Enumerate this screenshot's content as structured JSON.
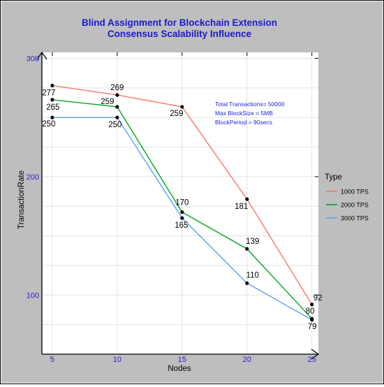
{
  "chart_data": {
    "type": "line",
    "title_lines": [
      "Blind Assignment for Blockchain Extension",
      "Consensus Scalability Influence"
    ],
    "xlabel": "Nodes",
    "ylabel": "TransactionRate",
    "x": [
      5,
      10,
      15,
      20,
      25
    ],
    "x_ticks": [
      "5",
      "10",
      "15",
      "20",
      "25"
    ],
    "y_ticks": [
      "100",
      "200",
      "300"
    ],
    "y_tick_values": [
      100,
      200,
      300
    ],
    "xlim": [
      4.2,
      25.5
    ],
    "ylim": [
      50,
      305
    ],
    "grid": true,
    "legend": {
      "title": "Type",
      "position": "right"
    },
    "annotations": [
      "Total Transactions= 50000",
      "Max BlockSize = 5MB",
      "BlockPeriod = 90secs"
    ],
    "series": [
      {
        "name": "1000 TPS",
        "color": "#f8766d",
        "values": [
          277,
          269,
          259,
          181,
          92
        ]
      },
      {
        "name": "2000 TPS",
        "color": "#00a520",
        "values": [
          265,
          259,
          170,
          139,
          80
        ]
      },
      {
        "name": "3000 TPS",
        "color": "#5e9ff2",
        "values": [
          250,
          250,
          165,
          110,
          79
        ]
      }
    ],
    "point_labels": [
      {
        "series": 0,
        "x": 5,
        "text": "277"
      },
      {
        "series": 0,
        "x": 10,
        "text": "269"
      },
      {
        "series": 0,
        "x": 15,
        "text": "259"
      },
      {
        "series": 0,
        "x": 20,
        "text": "181"
      },
      {
        "series": 0,
        "x": 25,
        "text": "92"
      },
      {
        "series": 1,
        "x": 5,
        "text": "265"
      },
      {
        "series": 1,
        "x": 10,
        "text": "259"
      },
      {
        "series": 1,
        "x": 15,
        "text": "170"
      },
      {
        "series": 1,
        "x": 20,
        "text": "139"
      },
      {
        "series": 1,
        "x": 25,
        "text": "80"
      },
      {
        "series": 2,
        "x": 5,
        "text": "250"
      },
      {
        "series": 2,
        "x": 10,
        "text": "250"
      },
      {
        "series": 2,
        "x": 15,
        "text": "165"
      },
      {
        "series": 2,
        "x": 20,
        "text": "110"
      },
      {
        "series": 2,
        "x": 25,
        "text": "79"
      }
    ],
    "colors": {
      "background": "#bebebe",
      "panel": "#ffffff",
      "title": "#1a1acc",
      "tick_text": "#2222dd",
      "annotation_text": "#2222dd",
      "grid": "#e4e4e4",
      "point": "#000000"
    }
  }
}
